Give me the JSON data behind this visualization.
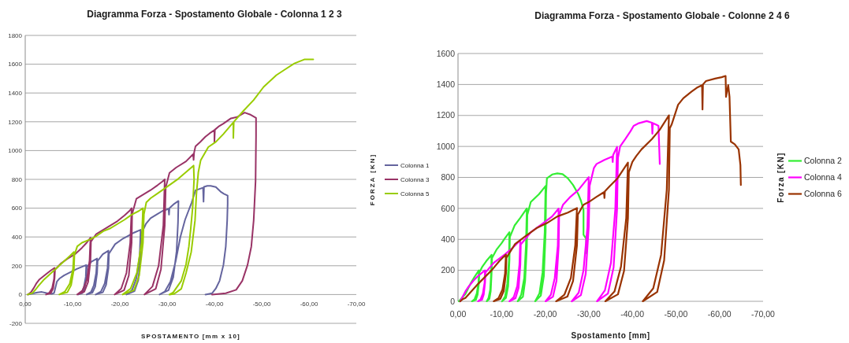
{
  "chart_data": [
    {
      "type": "line",
      "title": "Diagramma Forza - Spostamento Globale - Colonna 1 2 3",
      "xlabel": "SPOSTAMENTO [mm x 10]",
      "ylabel": "FORZA [KN]",
      "xlim": [
        0,
        -70
      ],
      "xticks": [
        {
          "value": 0,
          "label": "0,00"
        },
        {
          "value": -10,
          "label": "-10,00"
        },
        {
          "value": -20,
          "label": "-20,00"
        },
        {
          "value": -30,
          "label": "-30,00"
        },
        {
          "value": -40,
          "label": "-40,00"
        },
        {
          "value": -50,
          "label": "-50,00"
        },
        {
          "value": -60,
          "label": "-60,00"
        },
        {
          "value": -70,
          "label": "-70,00"
        }
      ],
      "ylim": [
        -200,
        1800
      ],
      "yticks": [
        -200,
        0,
        200,
        400,
        600,
        800,
        1000,
        1200,
        1400,
        1600,
        1800
      ],
      "grid": "y",
      "legend": "right",
      "series": [
        {
          "name": "Colonna 1",
          "color": "#64649e",
          "x": [
            -0.6,
            -1.6,
            -2.6,
            -3.5,
            -4.5,
            -5.6,
            -6.1,
            -6.4,
            -6.7,
            -7.2,
            -8.2,
            -9.5,
            -10.9,
            -12.0,
            -12.9,
            -12.8,
            -12.4,
            -11.9,
            -11.2,
            -12.1,
            -12.6,
            -12.9,
            -13.0,
            -14.0,
            -15.2,
            -15.0,
            -14.5,
            -13.9,
            -13.0,
            -14.2,
            -14.8,
            -15.2,
            -15.3,
            -16.4,
            -17.6,
            -17.4,
            -16.8,
            -16.0,
            -14.9,
            -16.4,
            -17.1,
            -17.6,
            -17.7,
            -19.0,
            -20.5,
            -21.6,
            -23.0,
            -24.4,
            -24.2,
            -23.5,
            -22.6,
            -21.4,
            -23.1,
            -23.9,
            -24.4,
            -24.5,
            -25.5,
            -26.5,
            -28.0,
            -29.0,
            -30.3,
            -30.4,
            -30.5,
            -31.5,
            -32.4,
            -32.3,
            -32.0,
            -31.3,
            -30.3,
            -28.4,
            -29.5,
            -30.7,
            -31.8,
            -32.8,
            -33.8,
            -34.5,
            -35.2,
            -36.0,
            -37.0,
            -37.6,
            -37.7,
            -37.8,
            -38.5,
            -39.2,
            -40.3,
            -41.3,
            -42.0,
            -42.8,
            -42.8,
            -42.7,
            -42.4,
            -41.9,
            -41.1,
            -40.3,
            -39.5,
            -38.1
          ],
          "values": [
            0,
            8,
            15,
            18,
            10,
            5,
            10,
            50,
            90,
            110,
            133,
            155,
            178,
            193,
            205,
            123,
            51,
            14,
            0,
            10,
            45,
            123,
            191,
            228,
            250,
            150,
            63,
            18,
            0,
            13,
            55,
            150,
            233,
            280,
            305,
            183,
            76,
            21,
            0,
            15,
            67,
            183,
            284,
            350,
            385,
            405,
            430,
            450,
            270,
            113,
            32,
            0,
            23,
            99,
            270,
            419,
            490,
            530,
            560,
            580,
            595,
            555,
            600,
            630,
            650,
            500,
            300,
            120,
            30,
            0,
            20,
            90,
            230,
            400,
            520,
            580,
            640,
            724,
            735,
            742,
            645,
            748,
            755,
            755,
            747,
            715,
            700,
            687,
            630,
            515,
            333,
            205,
            96,
            42,
            9,
            0
          ]
        },
        {
          "name": "Colonna 3",
          "color": "#993366",
          "x": [
            -0.6,
            -1.2,
            -1.8,
            -2.4,
            -3.0,
            -4.4,
            -5.3,
            -6.2,
            -6.1,
            -5.7,
            -5.1,
            -4.4,
            -5.4,
            -5.9,
            -6.2,
            -6.3,
            -7.5,
            -9.0,
            -10.5,
            -12.0,
            -13.0,
            -13.8,
            -13.6,
            -13.0,
            -12.1,
            -11.0,
            -12.5,
            -13.3,
            -13.8,
            -13.9,
            -15.0,
            -16.5,
            -18.0,
            -19.5,
            -21.0,
            -22.0,
            -22.5,
            -22.2,
            -21.4,
            -20.3,
            -18.9,
            -20.9,
            -21.9,
            -22.5,
            -22.6,
            -23.5,
            -25.0,
            -26.5,
            -28.0,
            -29.0,
            -29.5,
            -29.2,
            -28.2,
            -26.9,
            -25.2,
            -27.6,
            -28.7,
            -29.5,
            -29.7,
            -30.5,
            -31.9,
            -34.0,
            -35.5,
            -35.6,
            -35.7,
            -36.0,
            -37.0,
            -38.1,
            -39.0,
            -40.0,
            -40.0,
            -40.1,
            -41.0,
            -41.9,
            -43.5,
            -44.8,
            -46.4,
            -47.5,
            -48.8,
            -48.8,
            -48.7,
            -48.3,
            -47.8,
            -47.0,
            -45.9,
            -44.6,
            -42.4,
            -39.5
          ],
          "values": [
            0,
            15,
            45,
            80,
            105,
            142,
            165,
            185,
            111,
            46,
            13,
            0,
            9,
            41,
            111,
            172,
            215,
            250,
            280,
            325,
            360,
            395,
            237,
            99,
            28,
            0,
            20,
            87,
            237,
            367,
            420,
            450,
            480,
            510,
            550,
            580,
            600,
            360,
            150,
            42,
            0,
            30,
            132,
            360,
            558,
            665,
            695,
            725,
            760,
            785,
            800,
            480,
            200,
            56,
            0,
            40,
            176,
            480,
            744,
            845,
            882,
            925,
            975,
            935,
            985,
            1030,
            1060,
            1096,
            1120,
            1142,
            1060,
            1145,
            1170,
            1187,
            1224,
            1233,
            1264,
            1251,
            1227,
            1100,
            787,
            515,
            333,
            205,
            96,
            33,
            9,
            0
          ]
        },
        {
          "name": "Colonna 5",
          "color": "#99cc00",
          "x": [
            -0.5,
            -1.5,
            -2.2,
            -2.8,
            -4.0,
            -5.5,
            -7.0,
            -8.5,
            -9.5,
            -10.3,
            -10.1,
            -9.4,
            -8.4,
            -7.2,
            -8.9,
            -9.7,
            -10.3,
            -10.4,
            -11.0,
            -12.0,
            -13.5,
            -15.0,
            -16.5,
            -18.0,
            -19.5,
            -21.0,
            -22.5,
            -24.0,
            -24.9,
            -24.6,
            -23.6,
            -22.3,
            -20.6,
            -23.0,
            -24.1,
            -24.9,
            -25.1,
            -25.6,
            -26.5,
            -28.1,
            -29.7,
            -32.4,
            -34.0,
            -35.6,
            -35.7,
            -35.4,
            -35.0,
            -34.6,
            -34.0,
            -33.0,
            -31.3,
            -30.5,
            -31.5,
            -33.0,
            -34.0,
            -35.1,
            -35.9,
            -36.2,
            -36.6,
            -37.1,
            -38.7,
            -40.3,
            -41.9,
            -43.6,
            -44.0,
            -44.0,
            -44.1,
            -46.2,
            -48.3,
            -50.4,
            -53.1,
            -55.0,
            -56.9,
            -59.0,
            -60.9
          ],
          "values": [
            0,
            10,
            35,
            60,
            105,
            150,
            195,
            240,
            270,
            296,
            178,
            74,
            21,
            0,
            15,
            65,
            178,
            275,
            335,
            360,
            380,
            405,
            440,
            460,
            490,
            520,
            555,
            580,
            600,
            360,
            150,
            42,
            0,
            30,
            132,
            360,
            558,
            640,
            669,
            705,
            742,
            805,
            850,
            896,
            800,
            605,
            460,
            333,
            210,
            96,
            15,
            0,
            5,
            40,
            150,
            296,
            515,
            700,
            850,
            933,
            1024,
            1060,
            1115,
            1180,
            1196,
            1087,
            1200,
            1278,
            1351,
            1442,
            1524,
            1565,
            1605,
            1633,
            1633
          ]
        }
      ]
    },
    {
      "type": "line",
      "title": "Diagramma Forza - Spostamento Globale - Colonne 2 4 6",
      "xlabel": "Spostamento [mm]",
      "ylabel": "Forza [KN]",
      "xlim": [
        0,
        -70
      ],
      "xticks": [
        {
          "value": 0,
          "label": "0,00"
        },
        {
          "value": -10,
          "label": "-10,00"
        },
        {
          "value": -20,
          "label": "-20,00"
        },
        {
          "value": -30,
          "label": "-30,00"
        },
        {
          "value": -40,
          "label": "-40,00"
        },
        {
          "value": -50,
          "label": "-50,00"
        },
        {
          "value": -60,
          "label": "-60,00"
        },
        {
          "value": -70,
          "label": "-70,00"
        }
      ],
      "ylim": [
        0,
        1600
      ],
      "yticks": [
        0,
        200,
        400,
        600,
        800,
        1000,
        1200,
        1400,
        1600
      ],
      "grid": "y",
      "legend": "right",
      "series": [
        {
          "name": "Colonna 2",
          "color": "#33ee33",
          "x": [
            -0.2,
            -1.7,
            -2.9,
            -3.8,
            -4.8,
            -4.7,
            -4.3,
            -3.8,
            -3.2,
            -4.1,
            -4.5,
            -4.8,
            -4.9,
            -5.5,
            -6.5,
            -7.7,
            -7.6,
            -7.4,
            -7.0,
            -6.6,
            -7.2,
            -7.5,
            -7.7,
            -7.8,
            -8.9,
            -10.0,
            -10.7,
            -11.8,
            -11.7,
            -11.3,
            -10.8,
            -10.1,
            -11.0,
            -11.5,
            -11.8,
            -11.9,
            -13.0,
            -14.3,
            -15.8,
            -15.6,
            -15.2,
            -14.5,
            -13.7,
            -14.9,
            -15.4,
            -15.8,
            -15.9,
            -16.7,
            -18.6,
            -20.1,
            -19.9,
            -19.4,
            -18.7,
            -17.7,
            -19.0,
            -19.7,
            -20.1,
            -20.2,
            -20.4,
            -21.6,
            -22.8,
            -24.0,
            -25.2,
            -26.4,
            -27.6,
            -28.2,
            -28.8,
            -28.8,
            -29.4,
            -29.5
          ],
          "values": [
            0,
            47,
            115,
            158,
            200,
            120,
            50,
            14,
            0,
            10,
            44,
            120,
            186,
            220,
            260,
            300,
            180,
            75,
            21,
            0,
            15,
            66,
            180,
            279,
            336,
            375,
            404,
            446,
            268,
            112,
            31,
            0,
            22,
            98,
            268,
            415,
            490,
            539,
            600,
            360,
            150,
            42,
            0,
            30,
            132,
            360,
            558,
            641,
            692,
            745,
            447,
            186,
            52,
            0,
            37,
            164,
            447,
            693,
            794,
            819,
            826,
            821,
            794,
            751,
            692,
            650,
            590,
            430,
            404,
            310
          ]
        },
        {
          "name": "Colonna 4",
          "color": "#ff00ff",
          "x": [
            -0.5,
            -1.7,
            -2.3,
            -3.5,
            -4.7,
            -6.2,
            -6.1,
            -5.7,
            -5.2,
            -4.6,
            -5.5,
            -5.9,
            -6.2,
            -6.3,
            -8.3,
            -10.7,
            -12.5,
            -14.3,
            -14.1,
            -13.6,
            -12.8,
            -11.8,
            -13.2,
            -13.9,
            -14.3,
            -14.4,
            -16.7,
            -19.2,
            -21.6,
            -23.1,
            -22.9,
            -22.2,
            -21.3,
            -20.1,
            -21.8,
            -22.6,
            -23.1,
            -23.2,
            -24.1,
            -25.8,
            -27.6,
            -30.0,
            -29.7,
            -28.8,
            -27.7,
            -26.1,
            -28.2,
            -29.3,
            -30.0,
            -30.2,
            -31.2,
            -31.8,
            -33.6,
            -35.4,
            -35.5,
            -35.6,
            -36.5,
            -36.1,
            -35.1,
            -33.7,
            -31.9,
            -34.4,
            -35.7,
            -36.5,
            -36.7,
            -37.2,
            -38.4,
            -39.6,
            -40.3,
            -41.5,
            -43.3,
            -44.5,
            -44.6,
            -44.7,
            -45.5,
            -46.0,
            -46.1,
            -46.3
          ],
          "values": [
            0,
            64,
            90,
            132,
            166,
            200,
            120,
            50,
            14,
            0,
            10,
            44,
            120,
            186,
            251,
            302,
            344,
            395,
            237,
            99,
            28,
            0,
            20,
            87,
            237,
            367,
            446,
            497,
            548,
            599,
            359,
            150,
            42,
            0,
            30,
            132,
            359,
            557,
            624,
            675,
            718,
            802,
            481,
            201,
            56,
            0,
            40,
            176,
            481,
            746,
            862,
            887,
            913,
            935,
            900,
            945,
            997,
            598,
            249,
            70,
            0,
            50,
            219,
            598,
            927,
            1000,
            1048,
            1099,
            1133,
            1150,
            1164,
            1153,
            1082,
            1150,
            1140,
            1133,
            1048,
            887
          ]
        },
        {
          "name": "Colonna 6",
          "color": "#993300",
          "x": [
            -0.5,
            -1.1,
            -1.7,
            -4.7,
            -7.7,
            -9.5,
            -11.0,
            -10.8,
            -10.2,
            -9.3,
            -8.2,
            -9.7,
            -10.5,
            -11.0,
            -11.1,
            -13.1,
            -15.5,
            -18.0,
            -20.4,
            -22.8,
            -25.2,
            -27.3,
            -26.9,
            -25.9,
            -24.4,
            -22.5,
            -25.1,
            -26.4,
            -27.3,
            -27.5,
            -28.8,
            -30.0,
            -31.8,
            -33.5,
            -33.6,
            -33.7,
            -34.8,
            -36.6,
            -39.0,
            -38.6,
            -37.4,
            -35.9,
            -33.8,
            -36.7,
            -38.1,
            -39.0,
            -39.2,
            -40.0,
            -40.9,
            -42.1,
            -44.5,
            -46.3,
            -48.4,
            -47.9,
            -46.6,
            -44.8,
            -42.4,
            -45.7,
            -47.3,
            -48.4,
            -48.6,
            -49.0,
            -50.5,
            -51.7,
            -53.6,
            -54.8,
            -56.0,
            -56.1,
            -56.2,
            -56.9,
            -59.0,
            -60.5,
            -61.4,
            -61.5,
            -62.0,
            -62.3,
            -62.6,
            -63.5,
            -64.4,
            -64.8,
            -64.9
          ],
          "values": [
            0,
            14,
            22,
            115,
            200,
            260,
            302,
            181,
            76,
            21,
            0,
            15,
            66,
            181,
            281,
            370,
            421,
            472,
            505,
            548,
            573,
            602,
            361,
            151,
            42,
            0,
            30,
            132,
            361,
            560,
            624,
            641,
            675,
            705,
            667,
            710,
            743,
            794,
            896,
            538,
            224,
            63,
            0,
            45,
            197,
            538,
            833,
            900,
            938,
            981,
            1048,
            1108,
            1201,
            721,
            300,
            84,
            0,
            60,
            264,
            721,
            1117,
            1140,
            1269,
            1311,
            1354,
            1379,
            1396,
            1238,
            1400,
            1422,
            1438,
            1447,
            1455,
            1320,
            1396,
            1320,
            1031,
            1014,
            981,
            879,
            751
          ]
        }
      ]
    }
  ]
}
